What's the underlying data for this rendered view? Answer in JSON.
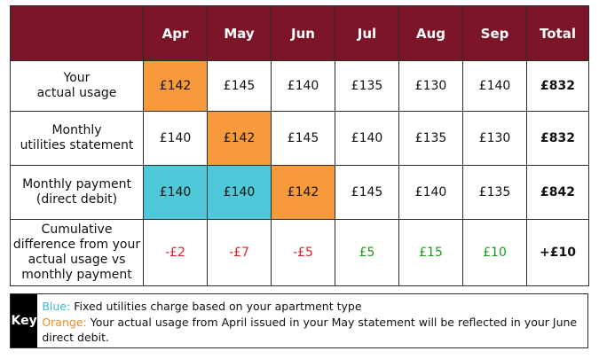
{
  "columns": [
    "Apr",
    "May",
    "Jun",
    "Jul",
    "Aug",
    "Sep",
    "Total"
  ],
  "rows": [
    {
      "label": [
        "Your",
        "actual usage"
      ],
      "cells": [
        {
          "value": "£142",
          "fill": "orange"
        },
        {
          "value": "£145"
        },
        {
          "value": "£140"
        },
        {
          "value": "£135"
        },
        {
          "value": "£130"
        },
        {
          "value": "£140"
        }
      ],
      "total": "£832"
    },
    {
      "label": [
        "Monthly",
        "utilities statement"
      ],
      "cells": [
        {
          "value": "£140"
        },
        {
          "value": "£142",
          "fill": "orange"
        },
        {
          "value": "£145"
        },
        {
          "value": "£140"
        },
        {
          "value": "£135"
        },
        {
          "value": "£130"
        }
      ],
      "total": "£832"
    },
    {
      "label": [
        "Monthly payment",
        "(direct debit)"
      ],
      "cells": [
        {
          "value": "£140",
          "fill": "blue"
        },
        {
          "value": "£140",
          "fill": "blue"
        },
        {
          "value": "£142",
          "fill": "orange"
        },
        {
          "value": "£145"
        },
        {
          "value": "£140"
        },
        {
          "value": "£135"
        }
      ],
      "total": "£842"
    },
    {
      "label": [
        "Cumulative",
        "difference from your",
        "actual usage vs",
        "monthly payment"
      ],
      "cells": [
        {
          "value": "-£2",
          "tone": "neg"
        },
        {
          "value": "-£7",
          "tone": "neg"
        },
        {
          "value": "-£5",
          "tone": "neg"
        },
        {
          "value": "£5",
          "tone": "pos"
        },
        {
          "value": "£15",
          "tone": "pos"
        },
        {
          "value": "£10",
          "tone": "pos"
        }
      ],
      "total": "+£10"
    }
  ],
  "key": {
    "label": "Key",
    "blue_prefix": "Blue:",
    "blue_text": "Fixed utilities charge based on your apartment type",
    "orange_prefix": "Orange:",
    "orange_text": "Your actual usage from April issued in your May statement will be reflected in your June direct debit."
  },
  "colors": {
    "header_bg": "#7b1527",
    "orange": "#f79a3c",
    "blue": "#4fc8d9",
    "negative": "#e0202a",
    "positive": "#1a9a1a"
  }
}
